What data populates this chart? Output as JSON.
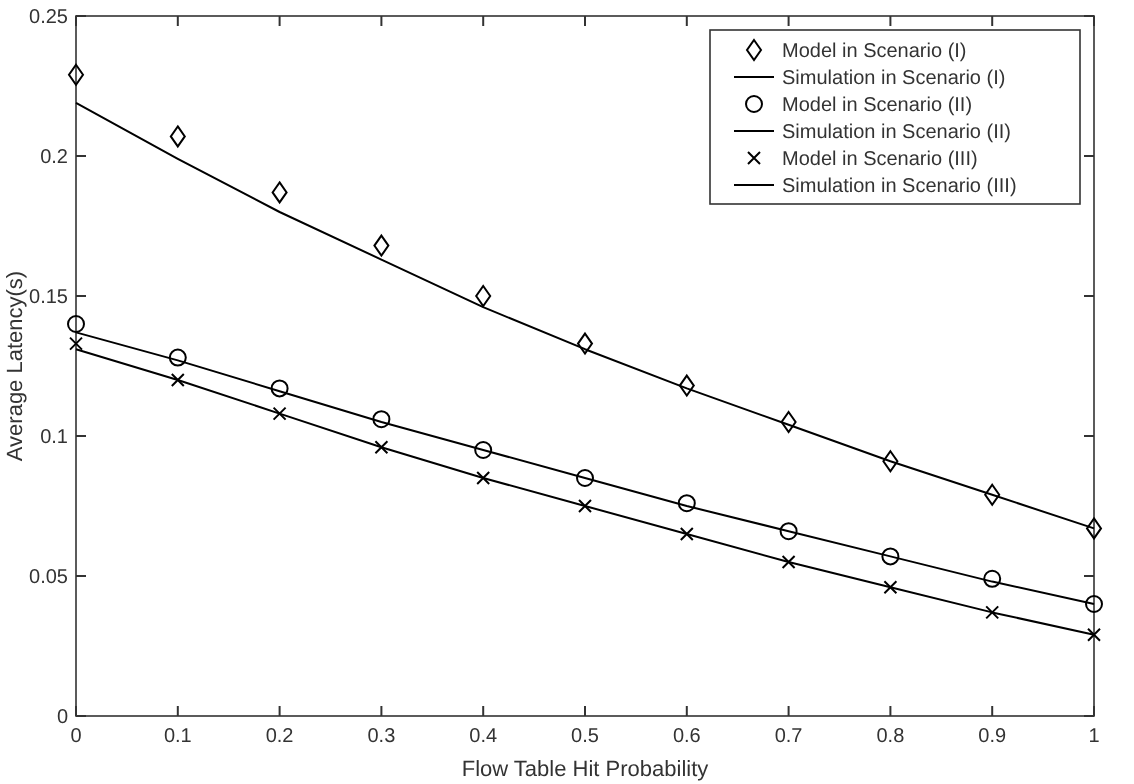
{
  "chart_data": {
    "type": "line",
    "xlabel": "Flow Table Hit Probability",
    "ylabel": "Average Latency(s)",
    "x": [
      0,
      0.1,
      0.2,
      0.3,
      0.4,
      0.5,
      0.6,
      0.7,
      0.8,
      0.9,
      1
    ],
    "xlim": [
      0,
      1
    ],
    "xticks": [
      0,
      0.1,
      0.2,
      0.3,
      0.4,
      0.5,
      0.6,
      0.7,
      0.8,
      0.9,
      1
    ],
    "ylim": [
      0,
      0.25
    ],
    "yticks": [
      0,
      0.05,
      0.1,
      0.15,
      0.2,
      0.25
    ],
    "grid": false,
    "legend": "top right",
    "series": [
      {
        "name": "Model in Scenario (I)",
        "type": "scatter",
        "marker": "diamond",
        "color": "#000000",
        "values": [
          0.229,
          0.207,
          0.187,
          0.168,
          0.15,
          0.133,
          0.118,
          0.105,
          0.091,
          0.079,
          0.067
        ]
      },
      {
        "name": "Simulation in Scenario (I)",
        "type": "line",
        "marker": "none",
        "color": "#000000",
        "values": [
          0.219,
          0.199,
          0.18,
          0.163,
          0.146,
          0.131,
          0.117,
          0.104,
          0.091,
          0.079,
          0.067
        ]
      },
      {
        "name": "Model in Scenario (II)",
        "type": "scatter",
        "marker": "circle",
        "color": "#000000",
        "values": [
          0.14,
          0.128,
          0.117,
          0.106,
          0.095,
          0.085,
          0.076,
          0.066,
          0.057,
          0.049,
          0.04
        ]
      },
      {
        "name": "Simulation in Scenario (II)",
        "type": "line",
        "marker": "none",
        "color": "#000000",
        "values": [
          0.137,
          0.127,
          0.116,
          0.105,
          0.095,
          0.085,
          0.075,
          0.066,
          0.057,
          0.048,
          0.04
        ]
      },
      {
        "name": "Model in Scenario (III)",
        "type": "scatter",
        "marker": "cross",
        "color": "#000000",
        "values": [
          0.133,
          0.12,
          0.108,
          0.096,
          0.085,
          0.075,
          0.065,
          0.055,
          0.046,
          0.037,
          0.029
        ]
      },
      {
        "name": "Simulation in Scenario (III)",
        "type": "line",
        "marker": "none",
        "color": "#000000",
        "values": [
          0.131,
          0.12,
          0.108,
          0.096,
          0.085,
          0.075,
          0.065,
          0.055,
          0.046,
          0.037,
          0.029
        ]
      }
    ]
  }
}
